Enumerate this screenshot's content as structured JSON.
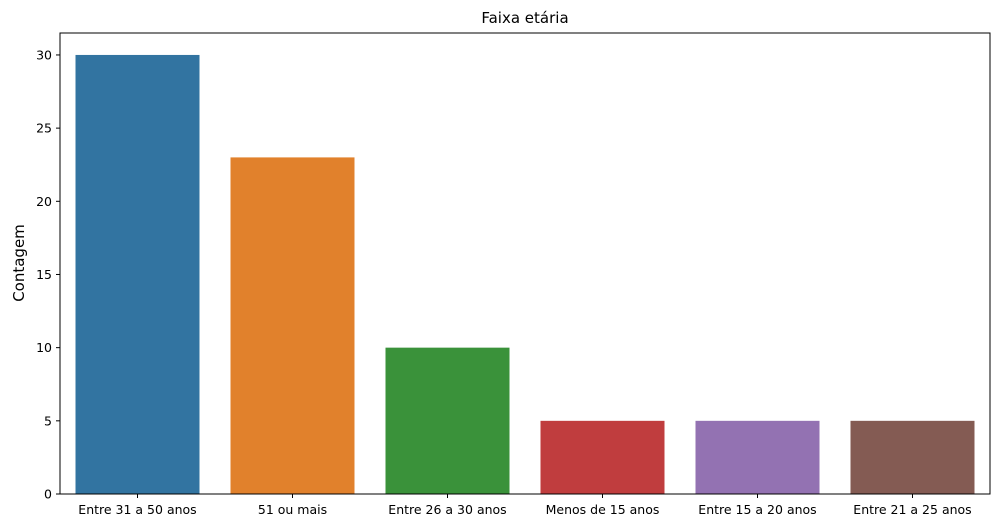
{
  "chart_data": {
    "type": "bar",
    "title": "Faixa etária",
    "xlabel": "",
    "ylabel": "Contagem",
    "categories": [
      "Entre 31 a 50 anos",
      "51 ou mais",
      "Entre 26 a 30 anos",
      "Menos de 15 anos",
      "Entre 15 a 20 anos",
      "Entre 21 a 25 anos"
    ],
    "values": [
      30,
      23,
      10,
      5,
      5,
      5
    ],
    "colors": [
      "#3274a1",
      "#e1812c",
      "#3a923a",
      "#c03d3e",
      "#9372b2",
      "#845b53"
    ],
    "ylim": [
      0,
      31.5
    ],
    "yticks": [
      0,
      5,
      10,
      15,
      20,
      25,
      30
    ],
    "ytick_labels": [
      "0",
      "5",
      "10",
      "15",
      "20",
      "25",
      "30"
    ],
    "grid": false,
    "legend": "none"
  }
}
